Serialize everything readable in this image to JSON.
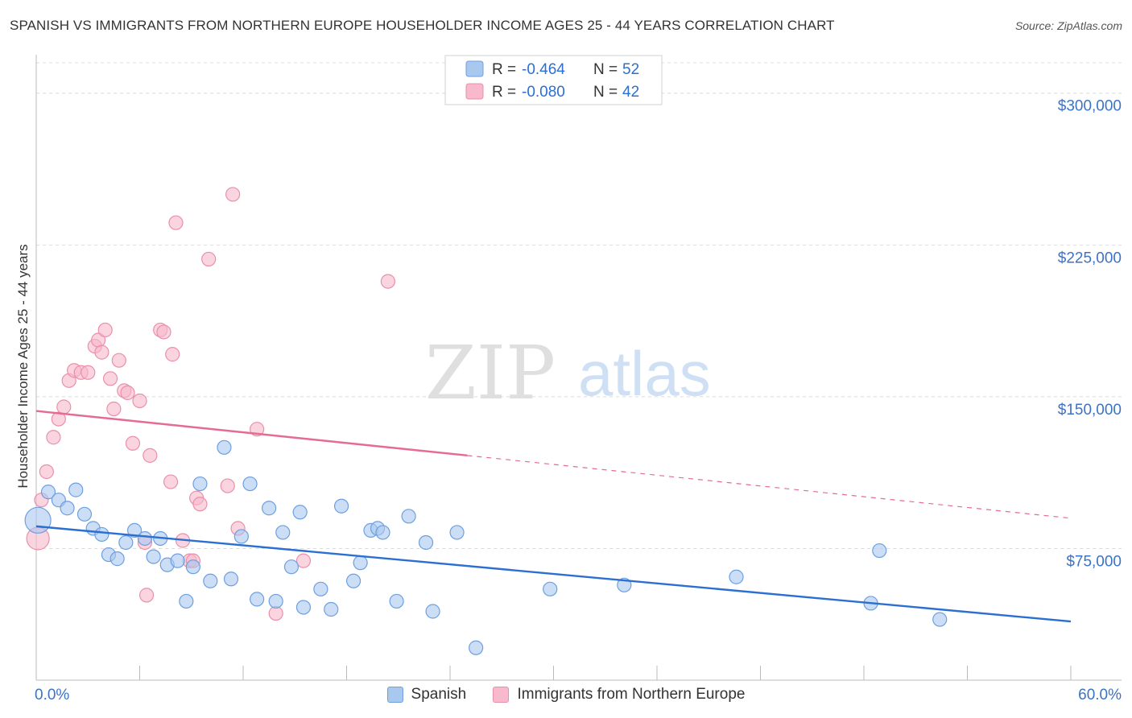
{
  "title": "SPANISH VS IMMIGRANTS FROM NORTHERN EUROPE HOUSEHOLDER INCOME AGES 25 - 44 YEARS CORRELATION CHART",
  "source": "Source: ZipAtlas.com",
  "watermark": {
    "zip": "ZIP",
    "atlas": "atlas"
  },
  "colors": {
    "blue_fill": "#a9c8f0",
    "blue_stroke": "#6d9fe0",
    "blue_line": "#2a6fd1",
    "pink_fill": "#f7b9cb",
    "pink_stroke": "#ea8fab",
    "pink_line": "#e46b93",
    "axis_label": "#3b73c6",
    "grid": "#dcdcdc"
  },
  "legend": {
    "r_label": "R =",
    "n_label": "N =",
    "rows": [
      {
        "series": "Spanish",
        "r": "-0.464",
        "n": "52"
      },
      {
        "series": "Immigrants from Northern Europe",
        "r": "-0.080",
        "n": "42"
      }
    ]
  },
  "chart_data": {
    "type": "scatter",
    "title": "SPANISH VS IMMIGRANTS FROM NORTHERN EUROPE HOUSEHOLDER INCOME AGES 25 - 44 YEARS CORRELATION CHART",
    "xlabel": "",
    "ylabel": "Householder Income Ages 25 - 44 years",
    "xlim": [
      0,
      60
    ],
    "ylim": [
      10000,
      315000
    ],
    "x_tick_labels": [
      "0.0%",
      "60.0%"
    ],
    "y_ticks": [
      75000,
      150000,
      225000,
      300000
    ],
    "y_tick_labels": [
      "$75,000",
      "$150,000",
      "$225,000",
      "$300,000"
    ],
    "series": [
      {
        "name": "Spanish",
        "points": [
          [
            0.1,
            89000
          ],
          [
            0.7,
            103000
          ],
          [
            1.3,
            99000
          ],
          [
            1.8,
            95000
          ],
          [
            2.3,
            104000
          ],
          [
            2.8,
            92000
          ],
          [
            3.3,
            85000
          ],
          [
            3.8,
            82000
          ],
          [
            4.2,
            72000
          ],
          [
            4.7,
            70000
          ],
          [
            5.2,
            78000
          ],
          [
            5.7,
            84000
          ],
          [
            6.3,
            80000
          ],
          [
            6.8,
            71000
          ],
          [
            7.2,
            80000
          ],
          [
            7.6,
            67000
          ],
          [
            8.2,
            69000
          ],
          [
            8.7,
            49000
          ],
          [
            9.1,
            66000
          ],
          [
            9.5,
            107000
          ],
          [
            10.1,
            59000
          ],
          [
            10.9,
            125000
          ],
          [
            11.3,
            60000
          ],
          [
            11.9,
            81000
          ],
          [
            12.4,
            107000
          ],
          [
            12.8,
            50000
          ],
          [
            13.5,
            95000
          ],
          [
            13.9,
            49000
          ],
          [
            14.3,
            83000
          ],
          [
            14.8,
            66000
          ],
          [
            15.3,
            93000
          ],
          [
            15.5,
            46000
          ],
          [
            16.5,
            55000
          ],
          [
            17.1,
            45000
          ],
          [
            17.7,
            96000
          ],
          [
            18.4,
            59000
          ],
          [
            18.8,
            68000
          ],
          [
            19.4,
            84000
          ],
          [
            19.8,
            85000
          ],
          [
            20.1,
            83000
          ],
          [
            20.9,
            49000
          ],
          [
            21.6,
            91000
          ],
          [
            22.6,
            78000
          ],
          [
            23.0,
            44000
          ],
          [
            24.4,
            83000
          ],
          [
            25.5,
            26000
          ],
          [
            29.8,
            55000
          ],
          [
            34.1,
            57000
          ],
          [
            40.6,
            61000
          ],
          [
            48.4,
            48000
          ],
          [
            48.9,
            74000
          ],
          [
            52.4,
            40000
          ]
        ]
      },
      {
        "name": "Immigrants from Northern Europe",
        "points": [
          [
            0.1,
            80000
          ],
          [
            0.3,
            99000
          ],
          [
            0.6,
            113000
          ],
          [
            1.0,
            130000
          ],
          [
            1.3,
            139000
          ],
          [
            1.6,
            145000
          ],
          [
            1.9,
            158000
          ],
          [
            2.2,
            163000
          ],
          [
            2.6,
            162000
          ],
          [
            3.0,
            162000
          ],
          [
            3.4,
            175000
          ],
          [
            3.6,
            178000
          ],
          [
            3.8,
            172000
          ],
          [
            4.0,
            183000
          ],
          [
            4.3,
            159000
          ],
          [
            4.5,
            144000
          ],
          [
            4.8,
            168000
          ],
          [
            5.1,
            153000
          ],
          [
            5.3,
            152000
          ],
          [
            5.6,
            127000
          ],
          [
            6.0,
            148000
          ],
          [
            6.3,
            78000
          ],
          [
            6.4,
            52000
          ],
          [
            6.6,
            121000
          ],
          [
            7.2,
            183000
          ],
          [
            7.4,
            182000
          ],
          [
            7.8,
            108000
          ],
          [
            7.9,
            171000
          ],
          [
            8.1,
            236000
          ],
          [
            8.5,
            79000
          ],
          [
            8.9,
            69000
          ],
          [
            9.1,
            69000
          ],
          [
            9.3,
            100000
          ],
          [
            9.5,
            97000
          ],
          [
            10.0,
            218000
          ],
          [
            11.1,
            106000
          ],
          [
            11.4,
            250000
          ],
          [
            11.7,
            85000
          ],
          [
            12.8,
            134000
          ],
          [
            13.9,
            43000
          ],
          [
            15.5,
            69000
          ],
          [
            20.4,
            207000
          ]
        ]
      }
    ],
    "trend_lines": [
      {
        "series": "Spanish",
        "from": [
          0,
          86000
        ],
        "to": [
          60,
          39000
        ],
        "style": "solid"
      },
      {
        "series": "Immigrants from Northern Europe",
        "from": [
          0,
          143000
        ],
        "to": [
          25,
          121000
        ],
        "style": "solid"
      },
      {
        "series": "Immigrants from Northern Europe",
        "from": [
          25,
          121000
        ],
        "to": [
          60,
          90000
        ],
        "style": "dashed"
      }
    ]
  }
}
